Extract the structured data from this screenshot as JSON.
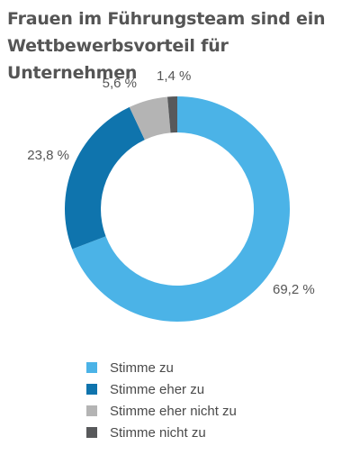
{
  "chart_data": {
    "type": "pie",
    "variant": "donut",
    "title": "Frauen im Führungsteam sind ein Wettbewerbsvorteil für Unternehmen",
    "slices": [
      {
        "name": "Stimme zu",
        "value": 69.2,
        "label": "69,2 %",
        "color": "#4bb3e7"
      },
      {
        "name": "Stimme eher zu",
        "value": 23.8,
        "label": "23,8 %",
        "color": "#0f74ad"
      },
      {
        "name": "Stimme eher nicht zu",
        "value": 5.6,
        "label": "5,6 %",
        "color": "#b4b4b4"
      },
      {
        "name": "Stimme nicht zu",
        "value": 1.4,
        "label": "1,4 %",
        "color": "#58595b"
      }
    ],
    "legend_position": "bottom",
    "grid": false
  }
}
